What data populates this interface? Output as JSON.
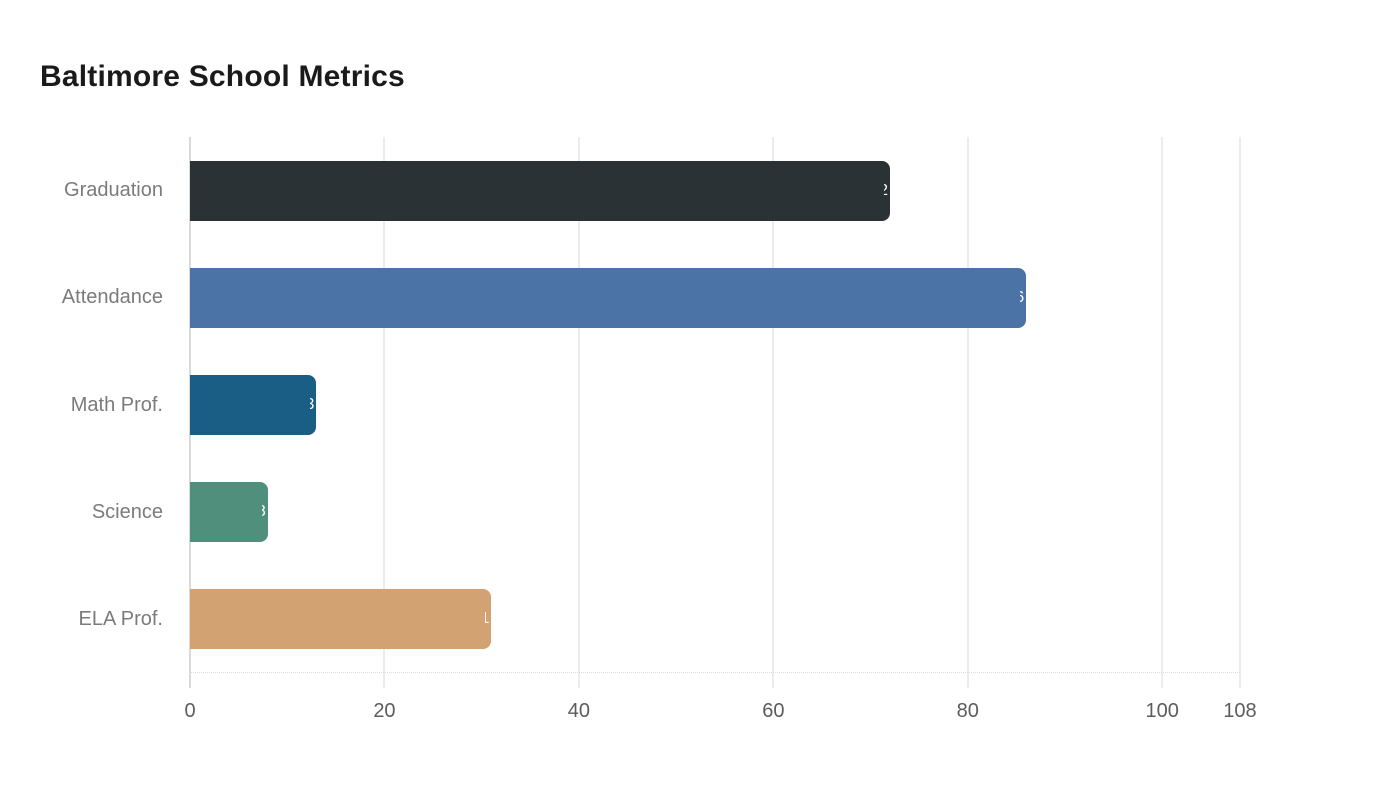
{
  "page": {
    "background": "#ffffff"
  },
  "chart_data": {
    "type": "bar",
    "orientation": "horizontal",
    "title": "Baltimore School Metrics",
    "categories": [
      "Graduation",
      "Attendance",
      "Math Prof.",
      "Science",
      "ELA Prof."
    ],
    "values": [
      72,
      86,
      13,
      8,
      31
    ],
    "bar_colors": [
      "#2b3236",
      "#4c73a6",
      "#1a5d85",
      "#4f8f7b",
      "#d2a272"
    ],
    "xlim": [
      0,
      108
    ],
    "x_ticks": [
      0,
      20,
      40,
      60,
      80,
      100,
      108
    ],
    "xlabel": "",
    "ylabel": "",
    "grid": true,
    "legend": false,
    "value_labels": "white, clipped at bar end",
    "colors": {
      "title": "#1a1a1a",
      "category_label": "#7b7b7b",
      "tick_label": "#5c5c5c",
      "axis_line": "#d9d9d9",
      "gridline": "#ececec",
      "baseline_dotted": "#dcdcdc",
      "value_label": "#ffffff"
    }
  }
}
